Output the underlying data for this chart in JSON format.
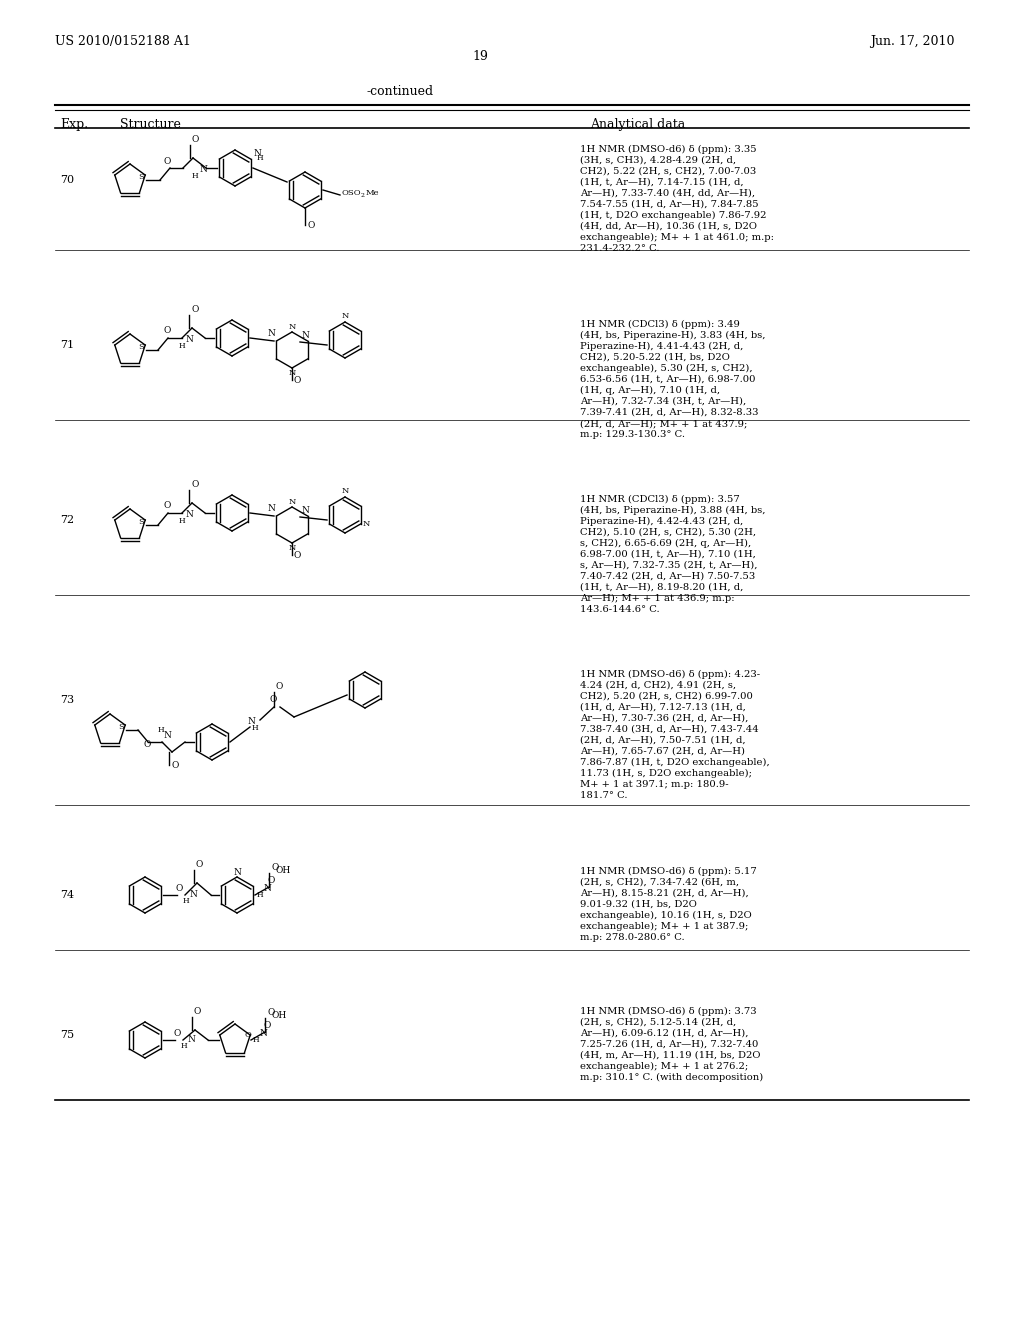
{
  "title_left": "US 2010/0152188 A1",
  "title_right": "Jun. 17, 2010",
  "page_number": "19",
  "continued_label": "-continued",
  "col1_header": "Exp.",
  "col2_header": "Structure",
  "col3_header": "Analytical data",
  "background_color": "#ffffff",
  "text_color": "#000000",
  "font_size_header": 9,
  "font_size_body": 7.5,
  "font_size_title": 9,
  "entries": [
    {
      "exp": "70",
      "analytical": "1H NMR (DMSO-d6) δ (ppm): 3.35\n(3H, s, CH3), 4.28-4.29 (2H, d,\nCH2), 5.22 (2H, s, CH2), 7.00-7.03\n(1H, t, Ar—H), 7.14-7.15 (1H, d,\nAr—H), 7.33-7.40 (4H, dd, Ar—H),\n7.54-7.55 (1H, d, Ar—H), 7.84-7.85\n(1H, t, D2O exchangeable) 7.86-7.92\n(4H, dd, Ar—H), 10.36 (1H, s, D2O\nexchangeable); M+ + 1 at 461.0; m.p:\n231.4-232.2° C."
    },
    {
      "exp": "71",
      "analytical": "1H NMR (CDCl3) δ (ppm): 3.49\n(4H, bs, Piperazine-H), 3.83 (4H, bs,\nPiperazine-H), 4.41-4.43 (2H, d,\nCH2), 5.20-5.22 (1H, bs, D2O\nexchangeable), 5.30 (2H, s, CH2),\n6.53-6.56 (1H, t, Ar—H), 6.98-7.00\n(1H, q, Ar—H), 7.10 (1H, d,\nAr—H), 7.32-7.34 (3H, t, Ar—H),\n7.39-7.41 (2H, d, Ar—H), 8.32-8.33\n(2H, d, Ar—H); M+ + 1 at 437.9;\nm.p: 129.3-130.3° C."
    },
    {
      "exp": "72",
      "analytical": "1H NMR (CDCl3) δ (ppm): 3.57\n(4H, bs, Piperazine-H), 3.88 (4H, bs,\nPiperazine-H), 4.42-4.43 (2H, d,\nCH2), 5.10 (2H, s, CH2), 5.30 (2H,\ns, CH2), 6.65-6.69 (2H, q, Ar—H),\n6.98-7.00 (1H, t, Ar—H), 7.10 (1H,\ns, Ar—H), 7.32-7.35 (2H, t, Ar—H),\n7.40-7.42 (2H, d, Ar—H) 7.50-7.53\n(1H, t, Ar—H), 8.19-8.20 (1H, d,\nAr—H); M+ + 1 at 436.9; m.p:\n143.6-144.6° C."
    },
    {
      "exp": "73",
      "analytical": "1H NMR (DMSO-d6) δ (ppm): 4.23-\n4.24 (2H, d, CH2), 4.91 (2H, s,\nCH2), 5.20 (2H, s, CH2) 6.99-7.00\n(1H, d, Ar—H), 7.12-7.13 (1H, d,\nAr—H), 7.30-7.36 (2H, d, Ar—H),\n7.38-7.40 (3H, d, Ar—H), 7.43-7.44\n(2H, d, Ar—H), 7.50-7.51 (1H, d,\nAr—H), 7.65-7.67 (2H, d, Ar—H)\n7.86-7.87 (1H, t, D2O exchangeable),\n11.73 (1H, s, D2O exchangeable);\nM+ + 1 at 397.1; m.p: 180.9-\n181.7° C."
    },
    {
      "exp": "74",
      "analytical": "1H NMR (DMSO-d6) δ (ppm): 5.17\n(2H, s, CH2), 7.34-7.42 (6H, m,\nAr—H), 8.15-8.21 (2H, d, Ar—H),\n9.01-9.32 (1H, bs, D2O\nexchangeable), 10.16 (1H, s, D2O\nexchangeable); M+ + 1 at 387.9;\nm.p: 278.0-280.6° C."
    },
    {
      "exp": "75",
      "analytical": "1H NMR (DMSO-d6) δ (ppm): 3.73\n(2H, s, CH2), 5.12-5.14 (2H, d,\nAr—H), 6.09-6.12 (1H, d, Ar—H),\n7.25-7.26 (1H, d, Ar—H), 7.32-7.40\n(4H, m, Ar—H), 11.19 (1H, bs, D2O\nexchangeable); M+ + 1 at 276.2;\nm.p: 310.1° C. (with decomposition)"
    }
  ]
}
